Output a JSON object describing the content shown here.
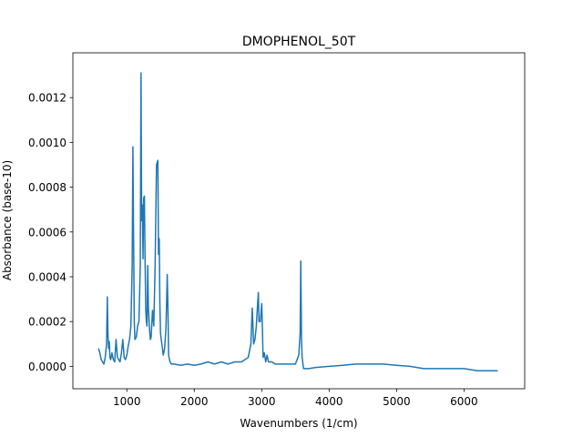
{
  "chart_data": {
    "type": "line",
    "title": "DMOPHENOL_50T",
    "xlabel": "Wavenumbers (1/cm)",
    "ylabel": "Absorbance (base-10)",
    "xlim": [
      200,
      6900
    ],
    "ylim": [
      -0.0001,
      0.0014
    ],
    "xticks": [
      1000,
      2000,
      3000,
      4000,
      5000,
      6000
    ],
    "xtick_labels": [
      "1000",
      "2000",
      "3000",
      "4000",
      "5000",
      "6000"
    ],
    "yticks": [
      0.0,
      0.0002,
      0.0004,
      0.0006,
      0.0008,
      0.001,
      0.0012
    ],
    "ytick_labels": [
      "0.0000",
      "0.0002",
      "0.0004",
      "0.0006",
      "0.0008",
      "0.0010",
      "0.0012"
    ],
    "grid": false,
    "line_color": "#1f77b4",
    "series": [
      {
        "x": [
          580,
          600,
          620,
          640,
          660,
          680,
          700,
          710,
          720,
          730,
          740,
          750,
          760,
          780,
          800,
          820,
          840,
          860,
          880,
          900,
          920,
          940,
          960,
          980,
          1000,
          1020,
          1040,
          1060,
          1080,
          1090,
          1100,
          1110,
          1120,
          1140,
          1160,
          1180,
          1200,
          1210,
          1220,
          1230,
          1240,
          1250,
          1260,
          1270,
          1280,
          1290,
          1300,
          1310,
          1320,
          1340,
          1350,
          1360,
          1380,
          1400,
          1420,
          1440,
          1460,
          1470,
          1480,
          1490,
          1500,
          1510,
          1520,
          1540,
          1560,
          1580,
          1600,
          1610,
          1620,
          1640,
          1660,
          1700,
          1800,
          1900,
          2000,
          2100,
          2200,
          2300,
          2400,
          2500,
          2600,
          2700,
          2800,
          2840,
          2860,
          2870,
          2880,
          2900,
          2920,
          2940,
          2950,
          2960,
          2980,
          3000,
          3010,
          3020,
          3040,
          3060,
          3080,
          3100,
          3150,
          3200,
          3300,
          3400,
          3500,
          3550,
          3570,
          3580,
          3590,
          3600,
          3620,
          3650,
          3700,
          3800,
          4000,
          4200,
          4400,
          4600,
          4800,
          5000,
          5200,
          5400,
          5600,
          5800,
          6000,
          6200,
          6400,
          6500
        ],
        "y": [
          8e-05,
          6e-05,
          3e-05,
          2e-05,
          1e-05,
          4e-05,
          0.0001,
          0.00031,
          0.00015,
          8e-05,
          0.00011,
          4e-05,
          3e-05,
          6e-05,
          3e-05,
          2e-05,
          0.00012,
          4e-05,
          3e-05,
          2e-05,
          6e-05,
          0.00012,
          4e-05,
          3e-05,
          5e-05,
          9e-05,
          0.00012,
          0.00018,
          0.00045,
          0.00098,
          0.0006,
          0.0002,
          0.00012,
          0.00013,
          0.00018,
          0.0002,
          0.00045,
          0.00131,
          0.00065,
          0.00072,
          0.00048,
          0.00075,
          0.00076,
          0.0005,
          0.00025,
          0.0002,
          0.00018,
          0.00045,
          0.00026,
          0.00015,
          0.00012,
          0.00013,
          0.00025,
          0.00018,
          0.00045,
          0.0009,
          0.00092,
          0.0005,
          0.00057,
          0.00028,
          0.00015,
          0.00012,
          0.0001,
          5e-05,
          8e-05,
          0.00017,
          0.00041,
          0.00025,
          5e-05,
          2e-05,
          1e-05,
          1e-05,
          5e-06,
          1e-05,
          5e-06,
          1e-05,
          2e-05,
          1e-05,
          2e-05,
          1e-05,
          2e-05,
          2e-05,
          4e-05,
          0.0001,
          0.00026,
          0.00018,
          0.0001,
          0.00012,
          0.00018,
          0.00028,
          0.00033,
          0.0002,
          0.0002,
          0.00028,
          0.00018,
          4e-05,
          6e-05,
          2e-05,
          5e-05,
          2e-05,
          2e-05,
          1e-05,
          1e-05,
          1e-05,
          1e-05,
          5e-05,
          0.00015,
          0.00047,
          0.00012,
          4e-05,
          -1e-05,
          -1e-05,
          -1e-05,
          -5e-06,
          0.0,
          5e-06,
          1e-05,
          1e-05,
          1e-05,
          5e-06,
          0.0,
          -1e-05,
          -1e-05,
          -1e-05,
          -1e-05,
          -2e-05,
          -2e-05,
          -2e-05
        ]
      }
    ]
  }
}
